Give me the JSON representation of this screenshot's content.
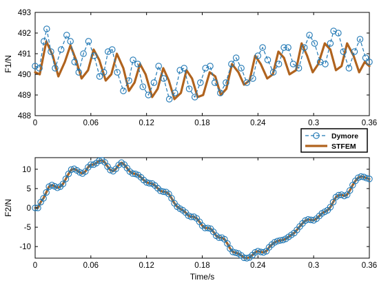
{
  "chart_data": [
    {
      "type": "line",
      "ylabel": "F1/N",
      "xlabel": "",
      "xlim": [
        0,
        0.36
      ],
      "ylim": [
        488,
        493
      ],
      "xticks": [
        "0",
        "0.06",
        "0.12",
        "0.18",
        "0.24",
        "0.3",
        "0.36"
      ],
      "yticks": [
        "488",
        "489",
        "490",
        "491",
        "492",
        "493"
      ],
      "grid": false,
      "series": [
        {
          "name": "Dymore",
          "style": "dashed-circle-markers",
          "color": "#1f77b4",
          "x": [
            0,
            0.0045,
            0.0095,
            0.0125,
            0.017,
            0.0215,
            0.028,
            0.034,
            0.038,
            0.0425,
            0.047,
            0.052,
            0.0575,
            0.0635,
            0.0695,
            0.074,
            0.0785,
            0.083,
            0.0885,
            0.095,
            0.101,
            0.1055,
            0.1105,
            0.116,
            0.122,
            0.128,
            0.133,
            0.1385,
            0.1445,
            0.1505,
            0.156,
            0.1605,
            0.166,
            0.172,
            0.178,
            0.1835,
            0.1885,
            0.1935,
            0.1995,
            0.2055,
            0.2115,
            0.2165,
            0.222,
            0.228,
            0.2345,
            0.24,
            0.245,
            0.2505,
            0.2565,
            0.2625,
            0.268,
            0.2725,
            0.278,
            0.284,
            0.29,
            0.2955,
            0.301,
            0.307,
            0.3125,
            0.318,
            0.3215,
            0.3265,
            0.332,
            0.338,
            0.344,
            0.35,
            0.356,
            0.36
          ],
          "values": [
            490.4,
            490.3,
            491.6,
            492.2,
            491.1,
            490.3,
            491.2,
            491.9,
            491.6,
            490.6,
            490.1,
            491.0,
            491.6,
            490.9,
            489.9,
            490.1,
            491.1,
            491.2,
            490.1,
            489.2,
            489.7,
            490.7,
            490.5,
            489.4,
            489.0,
            489.6,
            490.4,
            489.8,
            488.8,
            489.1,
            490.2,
            490.3,
            489.3,
            488.9,
            489.6,
            490.3,
            490.4,
            489.6,
            489.1,
            489.6,
            490.5,
            490.8,
            490.3,
            489.6,
            489.8,
            490.9,
            491.3,
            490.7,
            490.1,
            490.5,
            491.3,
            491.3,
            490.5,
            490.3,
            491.3,
            491.9,
            491.5,
            490.6,
            490.5,
            491.5,
            492.1,
            492.0,
            491.1,
            490.3,
            491.1,
            491.7,
            490.8,
            490.6
          ]
        },
        {
          "name": "STFEM",
          "style": "solid-thick",
          "color": "#b0631e",
          "x": [
            0,
            0.005,
            0.012,
            0.019,
            0.025,
            0.032,
            0.038,
            0.044,
            0.05,
            0.057,
            0.063,
            0.069,
            0.076,
            0.082,
            0.088,
            0.095,
            0.101,
            0.107,
            0.113,
            0.119,
            0.126,
            0.132,
            0.138,
            0.144,
            0.15,
            0.157,
            0.163,
            0.169,
            0.175,
            0.181,
            0.188,
            0.194,
            0.2,
            0.206,
            0.212,
            0.219,
            0.225,
            0.231,
            0.237,
            0.243,
            0.25,
            0.256,
            0.262,
            0.268,
            0.274,
            0.281,
            0.287,
            0.293,
            0.299,
            0.305,
            0.312,
            0.318,
            0.324,
            0.33,
            0.336,
            0.343,
            0.349,
            0.355,
            0.36
          ],
          "values": [
            490.1,
            490.0,
            491.6,
            490.9,
            489.9,
            490.6,
            491.4,
            490.7,
            489.8,
            490.2,
            491.2,
            490.7,
            489.7,
            490.0,
            491.0,
            490.3,
            489.2,
            489.6,
            490.5,
            490.0,
            488.9,
            489.3,
            490.3,
            489.7,
            488.8,
            489.1,
            490.2,
            489.8,
            488.9,
            489.0,
            490.1,
            489.9,
            489.0,
            489.3,
            490.5,
            490.1,
            489.5,
            489.7,
            490.9,
            490.5,
            489.8,
            490.0,
            491.1,
            490.8,
            490.0,
            490.2,
            491.5,
            490.9,
            490.1,
            490.5,
            491.5,
            491.2,
            490.2,
            490.4,
            491.5,
            490.9,
            490.1,
            490.6,
            490.4
          ]
        }
      ]
    },
    {
      "type": "line",
      "ylabel": "F2/N",
      "xlabel": "Time/s",
      "xlim": [
        0,
        0.36
      ],
      "ylim": [
        -13,
        13
      ],
      "xticks": [
        "0",
        "0.06",
        "0.12",
        "0.18",
        "0.24",
        "0.3",
        "0.36"
      ],
      "yticks": [
        "-10",
        "-5",
        "0",
        "5",
        "10"
      ],
      "grid": false,
      "legend": {
        "placement": "top-right",
        "entries": [
          "Dymore",
          "STFEM"
        ]
      },
      "series": [
        {
          "name": "Dymore",
          "style": "dashed-circle-markers",
          "color": "#1f77b4",
          "x": [
            0,
            0.003,
            0.006,
            0.009,
            0.012,
            0.015,
            0.018,
            0.021,
            0.024,
            0.027,
            0.03,
            0.033,
            0.036,
            0.039,
            0.042,
            0.045,
            0.048,
            0.051,
            0.054,
            0.057,
            0.06,
            0.063,
            0.066,
            0.069,
            0.072,
            0.075,
            0.078,
            0.081,
            0.084,
            0.087,
            0.09,
            0.093,
            0.096,
            0.099,
            0.102,
            0.105,
            0.108,
            0.111,
            0.114,
            0.117,
            0.12,
            0.123,
            0.126,
            0.129,
            0.132,
            0.135,
            0.138,
            0.141,
            0.144,
            0.147,
            0.15,
            0.153,
            0.156,
            0.159,
            0.162,
            0.165,
            0.168,
            0.171,
            0.174,
            0.177,
            0.18,
            0.183,
            0.186,
            0.189,
            0.192,
            0.195,
            0.198,
            0.201,
            0.204,
            0.207,
            0.21,
            0.213,
            0.216,
            0.219,
            0.222,
            0.225,
            0.228,
            0.231,
            0.234,
            0.237,
            0.24,
            0.243,
            0.246,
            0.249,
            0.252,
            0.255,
            0.258,
            0.261,
            0.264,
            0.267,
            0.27,
            0.273,
            0.276,
            0.279,
            0.282,
            0.285,
            0.288,
            0.291,
            0.294,
            0.297,
            0.3,
            0.303,
            0.306,
            0.309,
            0.312,
            0.315,
            0.318,
            0.321,
            0.324,
            0.327,
            0.33,
            0.333,
            0.336,
            0.339,
            0.342,
            0.345,
            0.348,
            0.351,
            0.354,
            0.357,
            0.36
          ],
          "values": [
            0,
            0,
            1.5,
            2.5,
            4,
            5.5,
            5.9,
            5.6,
            5.2,
            5.5,
            6.2,
            7.5,
            8.8,
            9.9,
            10.1,
            9.7,
            9.2,
            8.9,
            9.4,
            10.5,
            11.2,
            11.2,
            11.6,
            12.2,
            12.3,
            11.8,
            10.7,
            9.8,
            9.5,
            10.1,
            11.1,
            11.7,
            11.2,
            10.3,
            9.4,
            8.9,
            8.8,
            8.5,
            7.9,
            7.2,
            6.6,
            6.4,
            6.3,
            5.8,
            5.1,
            4.4,
            4.2,
            4.1,
            3.6,
            2.5,
            1.2,
            0.3,
            -0.2,
            -0.6,
            -1.2,
            -2,
            -2.3,
            -2.3,
            -2.7,
            -3.6,
            -4.6,
            -5.2,
            -5.2,
            -5.4,
            -6.2,
            -7.2,
            -7.7,
            -7.7,
            -8.1,
            -9.2,
            -10.5,
            -11.4,
            -11.6,
            -11.8,
            -12.3,
            -12.9,
            -13,
            -12.8,
            -12.2,
            -11.5,
            -11.2,
            -11.4,
            -11.5,
            -11.2,
            -10.2,
            -9.5,
            -8.9,
            -8.6,
            -8.4,
            -8.3,
            -8,
            -7.5,
            -7,
            -6.5,
            -5.7,
            -4.8,
            -4,
            -3.3,
            -3,
            -3.1,
            -3.2,
            -2.8,
            -2.1,
            -1.4,
            -1,
            -0.6,
            0.2,
            1.5,
            2.8,
            3.3,
            3.4,
            3.1,
            3.4,
            4.5,
            5.9,
            7,
            7.8,
            8.1,
            8,
            7.7,
            7.5
          ]
        },
        {
          "name": "STFEM",
          "style": "solid-thick",
          "color": "#b0631e",
          "x": [
            0,
            0.003,
            0.006,
            0.009,
            0.012,
            0.015,
            0.018,
            0.021,
            0.024,
            0.027,
            0.03,
            0.033,
            0.036,
            0.039,
            0.042,
            0.045,
            0.048,
            0.051,
            0.054,
            0.057,
            0.06,
            0.063,
            0.066,
            0.069,
            0.072,
            0.075,
            0.078,
            0.081,
            0.084,
            0.087,
            0.09,
            0.093,
            0.096,
            0.099,
            0.102,
            0.105,
            0.108,
            0.111,
            0.114,
            0.117,
            0.12,
            0.123,
            0.126,
            0.129,
            0.132,
            0.135,
            0.138,
            0.141,
            0.144,
            0.147,
            0.15,
            0.153,
            0.156,
            0.159,
            0.162,
            0.165,
            0.168,
            0.171,
            0.174,
            0.177,
            0.18,
            0.183,
            0.186,
            0.189,
            0.192,
            0.195,
            0.198,
            0.201,
            0.204,
            0.207,
            0.21,
            0.213,
            0.216,
            0.219,
            0.222,
            0.225,
            0.228,
            0.231,
            0.234,
            0.237,
            0.24,
            0.243,
            0.246,
            0.249,
            0.252,
            0.255,
            0.258,
            0.261,
            0.264,
            0.267,
            0.27,
            0.273,
            0.276,
            0.279,
            0.282,
            0.285,
            0.288,
            0.291,
            0.294,
            0.297,
            0.3,
            0.303,
            0.306,
            0.309,
            0.312,
            0.315,
            0.318,
            0.321,
            0.324,
            0.327,
            0.33,
            0.333,
            0.336,
            0.339,
            0.342,
            0.345,
            0.348,
            0.351,
            0.354,
            0.357,
            0.36
          ],
          "values": [
            0,
            0,
            1.5,
            2.5,
            4,
            5.5,
            5.9,
            5.6,
            5.2,
            5.5,
            6.2,
            7.5,
            8.8,
            9.9,
            10.1,
            9.7,
            9.2,
            8.9,
            9.4,
            10.5,
            11.2,
            11.2,
            11.6,
            12.2,
            12.3,
            11.8,
            10.7,
            9.8,
            9.5,
            10.1,
            11.1,
            11.7,
            11.2,
            10.3,
            9.4,
            8.9,
            8.8,
            8.5,
            7.9,
            7.2,
            6.6,
            6.4,
            6.3,
            5.8,
            5.1,
            4.4,
            4.2,
            4.1,
            3.6,
            2.5,
            1.2,
            0.3,
            -0.2,
            -0.6,
            -1.2,
            -2,
            -2.3,
            -2.3,
            -2.7,
            -3.6,
            -4.6,
            -5.2,
            -5.2,
            -5.4,
            -6.2,
            -7.2,
            -7.7,
            -7.7,
            -8.1,
            -9.2,
            -10.5,
            -11.4,
            -11.6,
            -11.8,
            -12.3,
            -12.9,
            -13,
            -12.8,
            -12.2,
            -11.5,
            -11.2,
            -11.4,
            -11.5,
            -11.2,
            -10.2,
            -9.5,
            -8.9,
            -8.6,
            -8.4,
            -8.3,
            -8,
            -7.5,
            -7,
            -6.5,
            -5.7,
            -4.8,
            -4,
            -3.3,
            -3,
            -3.1,
            -3.2,
            -2.8,
            -2.1,
            -1.4,
            -1,
            -0.6,
            0.2,
            1.5,
            2.8,
            3.3,
            3.4,
            3.1,
            3.4,
            4.5,
            5.9,
            7,
            7.8,
            8.1,
            8,
            7.7,
            7.5
          ]
        }
      ]
    }
  ]
}
